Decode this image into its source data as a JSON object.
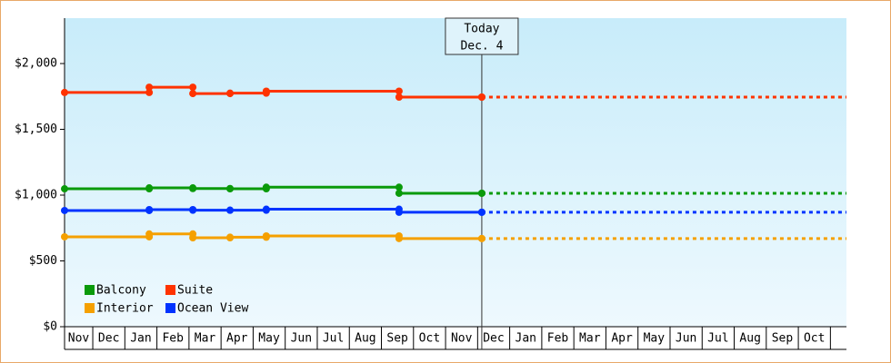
{
  "chart_data": {
    "type": "step-line",
    "x": [
      0.12,
      2.76,
      4.12,
      5.28,
      6.41,
      10.55,
      13.13
    ],
    "series": [
      {
        "name": "Balcony",
        "color": "#0a9a0a",
        "values": [
          1048,
          1055,
          1050,
          1048,
          1060,
          1014,
          1014
        ]
      },
      {
        "name": "Suite",
        "color": "#ff3300",
        "values": [
          1780,
          1820,
          1772,
          1775,
          1790,
          1745,
          1745
        ]
      },
      {
        "name": "Interior",
        "color": "#f5a000",
        "values": [
          683,
          705,
          676,
          680,
          690,
          670,
          670
        ]
      },
      {
        "name": "Ocean View",
        "color": "#0033ff",
        "values": [
          883,
          890,
          885,
          885,
          893,
          870,
          870
        ]
      }
    ],
    "xlim": [
      0.12,
      24.5
    ],
    "xticks": [
      {
        "value": 0,
        "label": "Nov"
      },
      {
        "value": 1,
        "label": "Dec"
      },
      {
        "value": 2,
        "label": "Jan"
      },
      {
        "value": 3,
        "label": "Feb"
      },
      {
        "value": 4,
        "label": "Mar"
      },
      {
        "value": 5,
        "label": "Apr"
      },
      {
        "value": 6,
        "label": "May"
      },
      {
        "value": 7,
        "label": "Jun"
      },
      {
        "value": 8,
        "label": "Jul"
      },
      {
        "value": 9,
        "label": "Aug"
      },
      {
        "value": 10,
        "label": "Sep"
      },
      {
        "value": 11,
        "label": "Oct"
      },
      {
        "value": 12,
        "label": "Nov"
      },
      {
        "value": 13,
        "label": "Dec"
      },
      {
        "value": 14,
        "label": "Jan"
      },
      {
        "value": 15,
        "label": "Feb"
      },
      {
        "value": 16,
        "label": "Mar"
      },
      {
        "value": 17,
        "label": "Apr"
      },
      {
        "value": 18,
        "label": "May"
      },
      {
        "value": 19,
        "label": "Jun"
      },
      {
        "value": 20,
        "label": "Jul"
      },
      {
        "value": 21,
        "label": "Aug"
      },
      {
        "value": 22,
        "label": "Sep"
      },
      {
        "value": 23,
        "label": "Oct"
      }
    ],
    "ylim": [
      0,
      2345
    ],
    "yticks": [
      {
        "value": 0,
        "label": "$0"
      },
      {
        "value": 500,
        "label": "$500"
      },
      {
        "value": 1000,
        "label": "$1,000"
      },
      {
        "value": 1500,
        "label": "$1,500"
      },
      {
        "value": 2000,
        "label": "$2,000"
      }
    ],
    "grid": false,
    "legend": "lower-left",
    "today": {
      "x": 13.13,
      "lines": [
        "Today",
        "Dec. 4"
      ]
    }
  }
}
